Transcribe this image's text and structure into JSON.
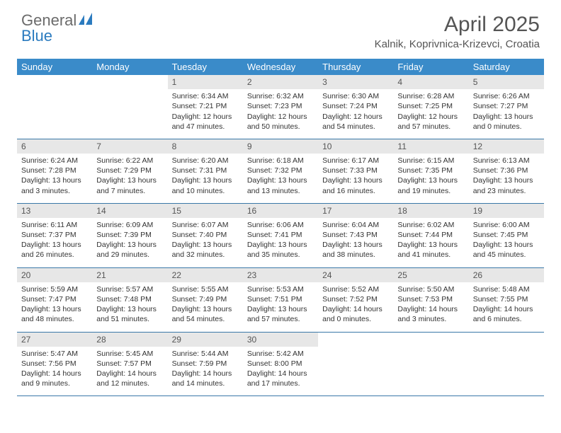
{
  "brand": {
    "part1": "General",
    "part2": "Blue"
  },
  "title": "April 2025",
  "subtitle": "Kalnik, Koprivnica-Krizevci, Croatia",
  "header_bg": "#3a8bc9",
  "days": [
    "Sunday",
    "Monday",
    "Tuesday",
    "Wednesday",
    "Thursday",
    "Friday",
    "Saturday"
  ],
  "weeks": [
    [
      null,
      null,
      {
        "n": "1",
        "sr": "6:34 AM",
        "ss": "7:21 PM",
        "dl": "12 hours and 47 minutes."
      },
      {
        "n": "2",
        "sr": "6:32 AM",
        "ss": "7:23 PM",
        "dl": "12 hours and 50 minutes."
      },
      {
        "n": "3",
        "sr": "6:30 AM",
        "ss": "7:24 PM",
        "dl": "12 hours and 54 minutes."
      },
      {
        "n": "4",
        "sr": "6:28 AM",
        "ss": "7:25 PM",
        "dl": "12 hours and 57 minutes."
      },
      {
        "n": "5",
        "sr": "6:26 AM",
        "ss": "7:27 PM",
        "dl": "13 hours and 0 minutes."
      }
    ],
    [
      {
        "n": "6",
        "sr": "6:24 AM",
        "ss": "7:28 PM",
        "dl": "13 hours and 3 minutes."
      },
      {
        "n": "7",
        "sr": "6:22 AM",
        "ss": "7:29 PM",
        "dl": "13 hours and 7 minutes."
      },
      {
        "n": "8",
        "sr": "6:20 AM",
        "ss": "7:31 PM",
        "dl": "13 hours and 10 minutes."
      },
      {
        "n": "9",
        "sr": "6:18 AM",
        "ss": "7:32 PM",
        "dl": "13 hours and 13 minutes."
      },
      {
        "n": "10",
        "sr": "6:17 AM",
        "ss": "7:33 PM",
        "dl": "13 hours and 16 minutes."
      },
      {
        "n": "11",
        "sr": "6:15 AM",
        "ss": "7:35 PM",
        "dl": "13 hours and 19 minutes."
      },
      {
        "n": "12",
        "sr": "6:13 AM",
        "ss": "7:36 PM",
        "dl": "13 hours and 23 minutes."
      }
    ],
    [
      {
        "n": "13",
        "sr": "6:11 AM",
        "ss": "7:37 PM",
        "dl": "13 hours and 26 minutes."
      },
      {
        "n": "14",
        "sr": "6:09 AM",
        "ss": "7:39 PM",
        "dl": "13 hours and 29 minutes."
      },
      {
        "n": "15",
        "sr": "6:07 AM",
        "ss": "7:40 PM",
        "dl": "13 hours and 32 minutes."
      },
      {
        "n": "16",
        "sr": "6:06 AM",
        "ss": "7:41 PM",
        "dl": "13 hours and 35 minutes."
      },
      {
        "n": "17",
        "sr": "6:04 AM",
        "ss": "7:43 PM",
        "dl": "13 hours and 38 minutes."
      },
      {
        "n": "18",
        "sr": "6:02 AM",
        "ss": "7:44 PM",
        "dl": "13 hours and 41 minutes."
      },
      {
        "n": "19",
        "sr": "6:00 AM",
        "ss": "7:45 PM",
        "dl": "13 hours and 45 minutes."
      }
    ],
    [
      {
        "n": "20",
        "sr": "5:59 AM",
        "ss": "7:47 PM",
        "dl": "13 hours and 48 minutes."
      },
      {
        "n": "21",
        "sr": "5:57 AM",
        "ss": "7:48 PM",
        "dl": "13 hours and 51 minutes."
      },
      {
        "n": "22",
        "sr": "5:55 AM",
        "ss": "7:49 PM",
        "dl": "13 hours and 54 minutes."
      },
      {
        "n": "23",
        "sr": "5:53 AM",
        "ss": "7:51 PM",
        "dl": "13 hours and 57 minutes."
      },
      {
        "n": "24",
        "sr": "5:52 AM",
        "ss": "7:52 PM",
        "dl": "14 hours and 0 minutes."
      },
      {
        "n": "25",
        "sr": "5:50 AM",
        "ss": "7:53 PM",
        "dl": "14 hours and 3 minutes."
      },
      {
        "n": "26",
        "sr": "5:48 AM",
        "ss": "7:55 PM",
        "dl": "14 hours and 6 minutes."
      }
    ],
    [
      {
        "n": "27",
        "sr": "5:47 AM",
        "ss": "7:56 PM",
        "dl": "14 hours and 9 minutes."
      },
      {
        "n": "28",
        "sr": "5:45 AM",
        "ss": "7:57 PM",
        "dl": "14 hours and 12 minutes."
      },
      {
        "n": "29",
        "sr": "5:44 AM",
        "ss": "7:59 PM",
        "dl": "14 hours and 14 minutes."
      },
      {
        "n": "30",
        "sr": "5:42 AM",
        "ss": "8:00 PM",
        "dl": "14 hours and 17 minutes."
      },
      null,
      null,
      null
    ]
  ],
  "labels": {
    "sunrise": "Sunrise:",
    "sunset": "Sunset:",
    "daylight": "Daylight:"
  }
}
